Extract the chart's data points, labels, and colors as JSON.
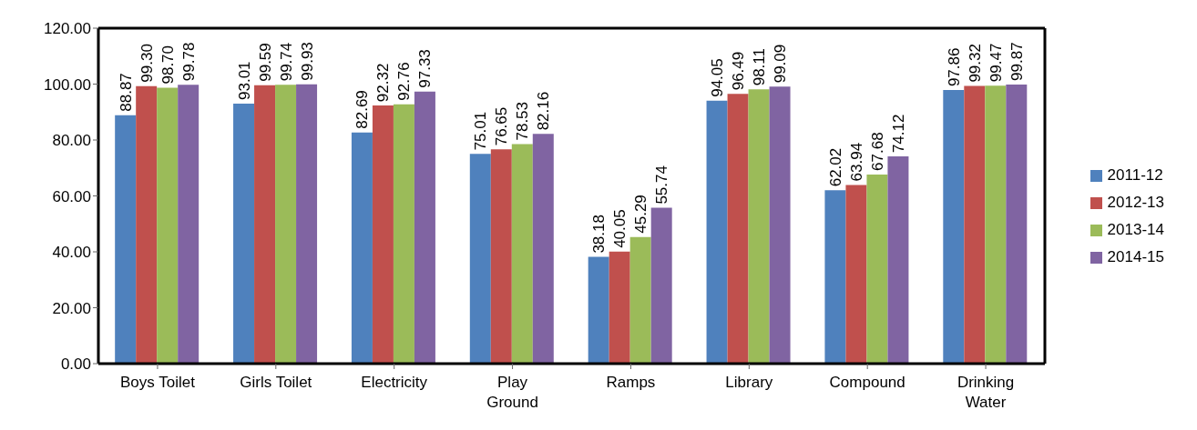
{
  "chart_data": {
    "type": "bar",
    "categories": [
      "Boys Toilet",
      "Girls Toilet",
      "Electricity",
      "Play\nGround",
      "Ramps",
      "Library",
      "Compound",
      "Drinking\nWater"
    ],
    "series": [
      {
        "name": "2011-12",
        "color": "#4f81bd",
        "values": [
          88.87,
          93.01,
          82.69,
          75.01,
          38.18,
          94.05,
          62.02,
          97.86
        ],
        "value_labels": [
          "88.87",
          "93.01",
          "82.69",
          "75.01",
          "38.18",
          "94.05",
          "62.02",
          "97.86"
        ]
      },
      {
        "name": "2012-13",
        "color": "#c0504d",
        "values": [
          99.3,
          99.59,
          92.32,
          76.65,
          40.05,
          96.49,
          63.94,
          99.32
        ],
        "value_labels": [
          "99.30",
          "99.59",
          "92.32",
          "76.65",
          "40.05",
          "96.49",
          "63.94",
          "99.32"
        ]
      },
      {
        "name": "2013-14",
        "color": "#9bbb59",
        "values": [
          98.7,
          99.74,
          92.76,
          78.53,
          45.29,
          98.11,
          67.68,
          99.47
        ],
        "value_labels": [
          "98.70",
          "99.74",
          "92.76",
          "78.53",
          "45.29",
          "98.11",
          "67.68",
          "99.47"
        ]
      },
      {
        "name": "2014-15",
        "color": "#8064a2",
        "values": [
          99.78,
          99.93,
          97.33,
          82.16,
          55.74,
          99.09,
          74.12,
          99.87
        ],
        "value_labels": [
          "99.78",
          "99.93",
          "97.33",
          "82.16",
          "55.74",
          "99.09",
          "74.12",
          "99.87"
        ]
      }
    ],
    "ylim": [
      0,
      120
    ],
    "yticks": [
      {
        "value": 0,
        "label": "0.00"
      },
      {
        "value": 20,
        "label": "20.00"
      },
      {
        "value": 40,
        "label": "40.00"
      },
      {
        "value": 60,
        "label": "60.00"
      },
      {
        "value": 80,
        "label": "80.00"
      },
      {
        "value": 100,
        "label": "100.00"
      },
      {
        "value": 120,
        "label": "120.00"
      }
    ],
    "grid": false,
    "legend": "right"
  }
}
